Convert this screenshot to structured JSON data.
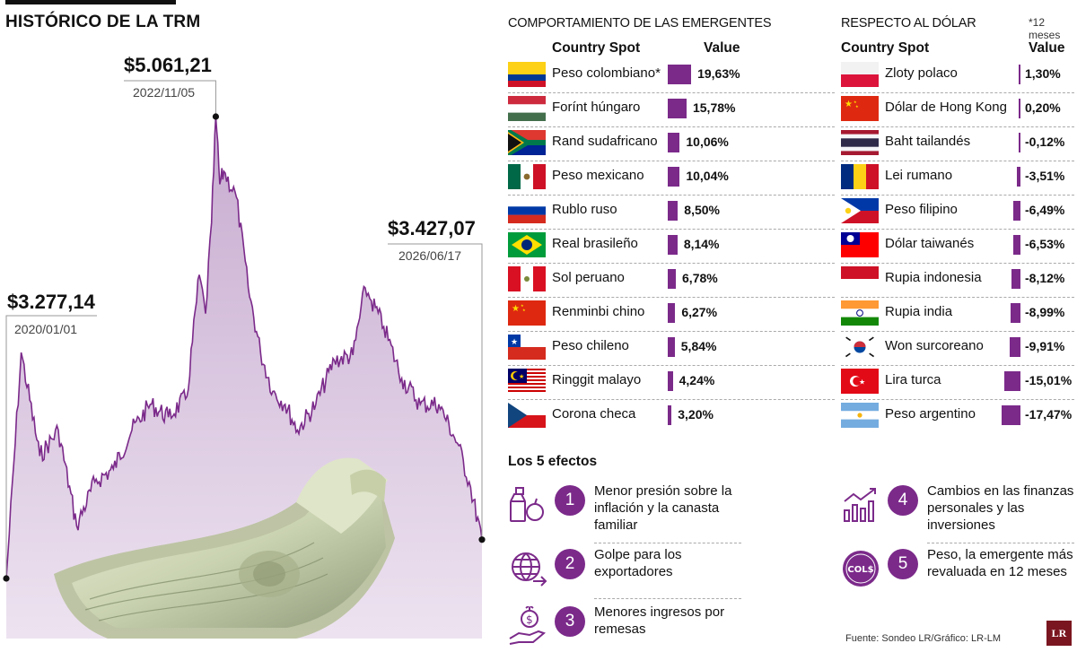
{
  "left": {
    "title": "HISTÓRICO DE LA TRM"
  },
  "chart_data": {
    "type": "area",
    "title": "HISTÓRICO DE LA TRM",
    "x_range": [
      "2020/01/01",
      "2026/06/17"
    ],
    "ylim": [
      3200,
      5100
    ],
    "area_color": "#d9c6df",
    "line_color": "#7b2a8a",
    "series": [
      {
        "x": [
          "2020/01/01",
          "2020/03/15",
          "2020/06/15",
          "2020/09/15",
          "2020/12/15",
          "2021/03/15",
          "2021/06/15",
          "2021/09/15",
          "2021/12/15",
          "2022/03/15",
          "2022/06/15",
          "2022/08/15",
          "2022/09/15",
          "2022/10/15",
          "2022/11/05",
          "2022/11/25",
          "2022/12/15",
          "2023/02/15",
          "2023/04/15",
          "2023/06/15",
          "2023/08/15",
          "2023/10/15",
          "2023/12/15",
          "2024/03/15",
          "2024/06/15",
          "2024/09/15",
          "2024/11/15",
          "2024/12/15",
          "2025/02/15",
          "2025/05/15",
          "2025/08/15",
          "2025/11/15",
          "2026/02/15",
          "2026/04/15",
          "2026/06/17"
        ],
        "y": [
          3277.14,
          4150,
          3750,
          3850,
          3480,
          3650,
          3700,
          3850,
          3950,
          3900,
          3980,
          4450,
          4300,
          4650,
          5061.21,
          4800,
          4850,
          4750,
          4400,
          4150,
          4000,
          3950,
          3850,
          3950,
          4120,
          4140,
          4400,
          4350,
          4250,
          4050,
          3950,
          3950,
          3800,
          3650,
          3427.07
        ]
      }
    ],
    "annotations": [
      {
        "label_value": "$3.277,14",
        "label_date": "2020/01/01",
        "x": "2020/01/01",
        "y": 3277.14
      },
      {
        "label_value": "$5.061,21",
        "label_date": "2022/11/05",
        "x": "2022/11/05",
        "y": 5061.21
      },
      {
        "label_value": "$3.427,07",
        "label_date": "2026/06/17",
        "x": "2026/06/17",
        "y": 3427.07
      }
    ]
  },
  "tables": {
    "left_title": "COMPORTAMIENTO DE LAS EMERGENTES",
    "right_title": "RESPECTO AL DÓLAR",
    "note": "*12 meses",
    "col_country": "Country Spot",
    "col_value": "Value",
    "bar_color": "#7b2a8a",
    "left_rows": [
      {
        "flag": "colombia-flag",
        "name": "Peso colombiano*",
        "value": 19.63,
        "label": "19,63%"
      },
      {
        "flag": "hungary-flag",
        "name": "Forínt húngaro",
        "value": 15.78,
        "label": "15,78%"
      },
      {
        "flag": "south-africa-flag",
        "name": "Rand sudafricano",
        "value": 10.06,
        "label": "10,06%"
      },
      {
        "flag": "mexico-flag",
        "name": "Peso mexicano",
        "value": 10.04,
        "label": "10,04%"
      },
      {
        "flag": "russia-flag",
        "name": "Rublo ruso",
        "value": 8.5,
        "label": "8,50%"
      },
      {
        "flag": "brazil-flag",
        "name": "Real brasileño",
        "value": 8.14,
        "label": "8,14%"
      },
      {
        "flag": "peru-flag",
        "name": "Sol peruano",
        "value": 6.78,
        "label": "6,78%"
      },
      {
        "flag": "china-flag",
        "name": "Renminbi chino",
        "value": 6.27,
        "label": "6,27%"
      },
      {
        "flag": "chile-flag",
        "name": "Peso chileno",
        "value": 5.84,
        "label": "5,84%"
      },
      {
        "flag": "malaysia-flag",
        "name": "Ringgit malayo",
        "value": 4.24,
        "label": "4,24%"
      },
      {
        "flag": "czech-flag",
        "name": "Corona checa",
        "value": 3.2,
        "label": "3,20%"
      }
    ],
    "right_rows": [
      {
        "flag": "poland-flag",
        "name": "Zloty polaco",
        "value": 1.3,
        "label": "1,30%"
      },
      {
        "flag": "hong-kong-flag",
        "name": "Dólar de Hong Kong",
        "value": 0.2,
        "label": "0,20%"
      },
      {
        "flag": "thailand-flag",
        "name": "Baht tailandés",
        "value": -0.12,
        "label": "-0,12%"
      },
      {
        "flag": "romania-flag",
        "name": "Lei rumano",
        "value": -3.51,
        "label": "-3,51%"
      },
      {
        "flag": "philippines-flag",
        "name": "Peso filipino",
        "value": -6.49,
        "label": "-6,49%"
      },
      {
        "flag": "taiwan-flag",
        "name": "Dólar taiwanés",
        "value": -6.53,
        "label": "-6,53%"
      },
      {
        "flag": "indonesia-flag",
        "name": "Rupia indonesia",
        "value": -8.12,
        "label": "-8,12%"
      },
      {
        "flag": "india-flag",
        "name": "Rupia india",
        "value": -8.99,
        "label": "-8,99%"
      },
      {
        "flag": "south-korea-flag",
        "name": "Won surcoreano",
        "value": -9.91,
        "label": "-9,91%"
      },
      {
        "flag": "turkey-flag",
        "name": "Lira turca",
        "value": -15.01,
        "label": "-15,01%"
      },
      {
        "flag": "argentina-flag",
        "name": "Peso argentino",
        "value": -17.47,
        "label": "-17,47%"
      }
    ]
  },
  "effects": {
    "title": "Los 5 efectos",
    "items": [
      {
        "num": "1",
        "icon": "grocery-basket-icon",
        "text": "Menor presión sobre la inflación y la canasta familiar"
      },
      {
        "num": "2",
        "icon": "globe-export-icon",
        "text": "Golpe para los exportadores"
      },
      {
        "num": "3",
        "icon": "hand-coin-icon",
        "text": "Menores ingresos por remesas"
      },
      {
        "num": "4",
        "icon": "growth-chart-icon",
        "text": "Cambios en las finanzas personales y las inversiones"
      },
      {
        "num": "5",
        "icon": "cop-coin-icon",
        "coin_label": "COL$",
        "text": "Peso, la emergente más revaluada en 12 meses"
      }
    ]
  },
  "footer": {
    "source": "Fuente: Sondeo LR/Gráfico: LR-LM",
    "logo": "LR"
  }
}
